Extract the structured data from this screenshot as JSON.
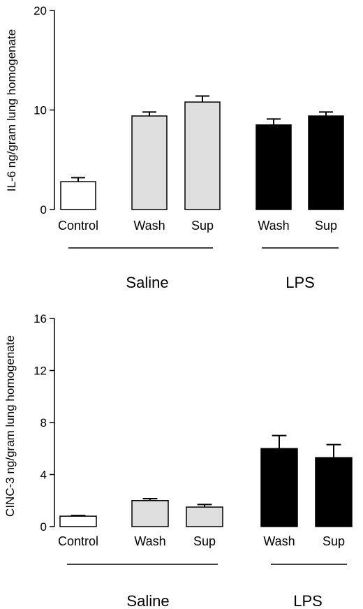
{
  "colors": {
    "control": "#ffffff",
    "saline": "#dedede",
    "lps": "#000000",
    "axis": "#000000"
  },
  "chart_data": [
    {
      "type": "bar",
      "title": "",
      "ylabel": "IL-6 ng/gram lung homogenate",
      "xlabel": "",
      "ylim": [
        0,
        20
      ],
      "yticks": [
        0,
        10,
        20
      ],
      "ytick_labels": [
        "0",
        "10",
        "20"
      ],
      "categories": [
        "Control",
        "Wash",
        "Sup",
        "Wash",
        "Sup"
      ],
      "groups": [
        "control",
        "saline",
        "saline",
        "lps",
        "lps"
      ],
      "values": [
        2.8,
        9.4,
        10.8,
        8.5,
        9.4
      ],
      "errors": [
        0.4,
        0.4,
        0.6,
        0.6,
        0.4
      ],
      "group_labels": [
        "Saline",
        "LPS"
      ],
      "grid": false
    },
    {
      "type": "bar",
      "title": "",
      "ylabel": "CINC-3 ng/gram lung homogenate",
      "xlabel": "",
      "ylim": [
        0,
        16
      ],
      "yticks": [
        0,
        4,
        8,
        12,
        16
      ],
      "ytick_labels": [
        "0",
        "4",
        "8",
        "12",
        "16"
      ],
      "categories": [
        "Control",
        "Wash",
        "Sup",
        "Wash",
        "Sup"
      ],
      "groups": [
        "control",
        "saline",
        "saline",
        "lps",
        "lps"
      ],
      "values": [
        0.8,
        2.0,
        1.5,
        6.0,
        5.3
      ],
      "errors": [
        0.05,
        0.15,
        0.2,
        1.0,
        1.0
      ],
      "group_labels": [
        "Saline",
        "LPS"
      ],
      "grid": false
    }
  ]
}
